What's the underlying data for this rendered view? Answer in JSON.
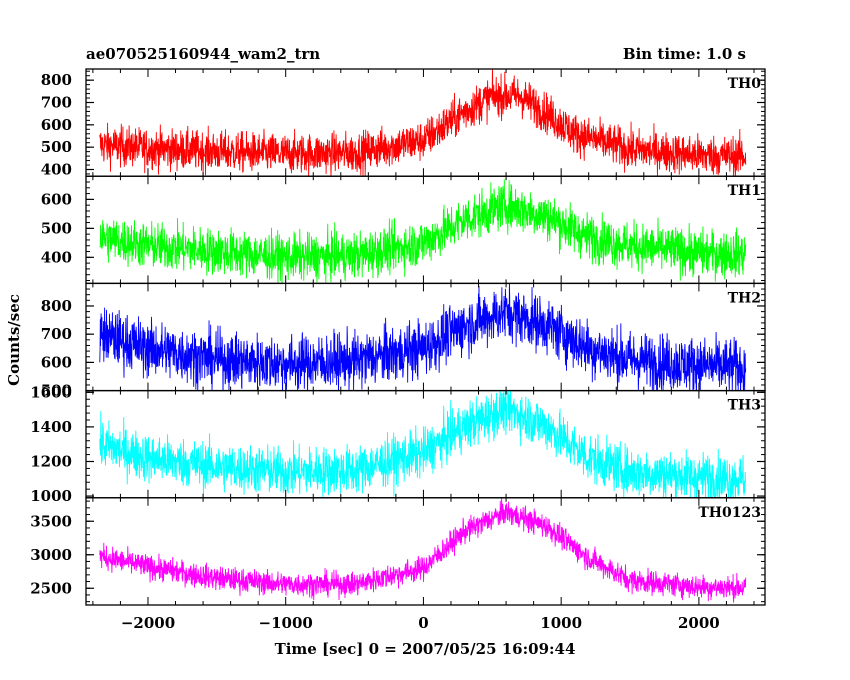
{
  "figure": {
    "title_left": "ae070525160944_wam2_trn",
    "title_right": "Bin time: 1.0 s",
    "xlabel": "Time [sec] 0 = 2007/05/25 16:09:44",
    "ylabel": "Counts/sec"
  },
  "chart_data": {
    "type": "line",
    "xlim": [
      -2450,
      2480
    ],
    "x_range": [
      -2350,
      2340
    ],
    "x_ticks": [
      -2000,
      -1000,
      0,
      1000,
      2000
    ],
    "x_tick_labels": [
      "−2000",
      "−1000",
      "0",
      "1000",
      "2000"
    ],
    "panels": [
      {
        "name": "TH0",
        "color": "#ff0000",
        "ylim": [
          370,
          850
        ],
        "y_ticks": [
          400,
          500,
          600,
          700,
          800
        ],
        "y_tick_labels": [
          "400",
          "500",
          "600",
          "700",
          "800"
        ],
        "profile_x": [
          -2350,
          -2000,
          -1500,
          -1000,
          -500,
          0,
          300,
          500,
          700,
          900,
          1100,
          1500,
          2000,
          2340
        ],
        "profile_y": [
          510,
          495,
          480,
          470,
          475,
          530,
          660,
          730,
          730,
          650,
          560,
          490,
          465,
          460
        ],
        "noise": 45
      },
      {
        "name": "TH1",
        "color": "#00ff00",
        "ylim": [
          310,
          680
        ],
        "y_ticks": [
          400,
          500,
          600
        ],
        "y_tick_labels": [
          "400",
          "500",
          "600"
        ],
        "profile_x": [
          -2350,
          -2000,
          -1500,
          -1000,
          -500,
          0,
          300,
          600,
          900,
          1200,
          1500,
          2000,
          2340
        ],
        "profile_y": [
          470,
          440,
          420,
          400,
          405,
          450,
          530,
          580,
          540,
          470,
          440,
          415,
          410
        ],
        "noise": 40
      },
      {
        "name": "TH2",
        "color": "#0000ff",
        "ylim": [
          500,
          880
        ],
        "y_ticks": [
          500,
          600,
          700,
          800
        ],
        "y_tick_labels": [
          "500",
          "600",
          "700",
          "800"
        ],
        "profile_x": [
          -2350,
          -2000,
          -1500,
          -1000,
          -500,
          0,
          300,
          600,
          900,
          1200,
          1500,
          2000,
          2340
        ],
        "profile_y": [
          700,
          650,
          610,
          595,
          605,
          650,
          730,
          780,
          730,
          650,
          610,
          590,
          580
        ],
        "noise": 50
      },
      {
        "name": "TH3",
        "color": "#00ffff",
        "ylim": [
          990,
          1610
        ],
        "y_ticks": [
          1000,
          1200,
          1400,
          1600
        ],
        "y_tick_labels": [
          "1000",
          "1200",
          "1400",
          "1600"
        ],
        "profile_x": [
          -2350,
          -2000,
          -1500,
          -1000,
          -500,
          0,
          300,
          600,
          900,
          1200,
          1500,
          2000,
          2340
        ],
        "profile_y": [
          1300,
          1220,
          1170,
          1140,
          1150,
          1250,
          1400,
          1510,
          1400,
          1220,
          1140,
          1110,
          1100
        ],
        "noise": 70
      },
      {
        "name": "TH0123",
        "color": "#ff00ff",
        "ylim": [
          2250,
          3850
        ],
        "y_ticks": [
          2500,
          3000,
          3500
        ],
        "y_tick_labels": [
          "2500",
          "3000",
          "3500"
        ],
        "profile_x": [
          -2350,
          -2000,
          -1500,
          -1000,
          -500,
          0,
          300,
          600,
          900,
          1200,
          1500,
          2000,
          2340
        ],
        "profile_y": [
          2980,
          2820,
          2650,
          2560,
          2560,
          2800,
          3350,
          3640,
          3420,
          2950,
          2620,
          2520,
          2510
        ],
        "noise": 90
      }
    ]
  }
}
